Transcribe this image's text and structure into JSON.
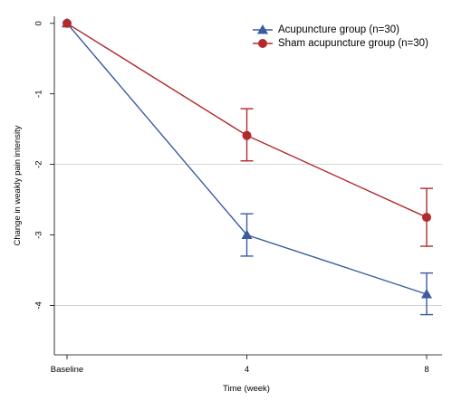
{
  "chart_data": {
    "type": "line",
    "title": "",
    "xlabel": "Time (week)",
    "ylabel": "Change in weakly pain intensity",
    "categories": [
      "Baseline",
      "4",
      "8"
    ],
    "x": [
      0,
      4,
      8
    ],
    "ylim": [
      -4.7,
      0.1
    ],
    "yticks": [
      0,
      -1,
      -2,
      -3,
      -4
    ],
    "ytick_labels": [
      "0",
      "-1",
      "-2",
      "-3",
      "-4"
    ],
    "gridlines_y": [
      -2,
      -4
    ],
    "legend_position": "top-right",
    "series": [
      {
        "name": "Acupuncture group (n=30)",
        "color": "#3a5ba0",
        "marker": "triangle",
        "values": [
          0,
          -3.0,
          -3.84
        ],
        "err_low": [
          0,
          -3.3,
          -4.13
        ],
        "err_high": [
          0,
          -2.7,
          -3.54
        ]
      },
      {
        "name": "Sham acupuncture group (n=30)",
        "color": "#b22a2e",
        "marker": "circle",
        "values": [
          0,
          -1.59,
          -2.75
        ],
        "err_low": [
          0,
          -1.95,
          -3.16
        ],
        "err_high": [
          0,
          -1.21,
          -2.34
        ]
      }
    ]
  }
}
